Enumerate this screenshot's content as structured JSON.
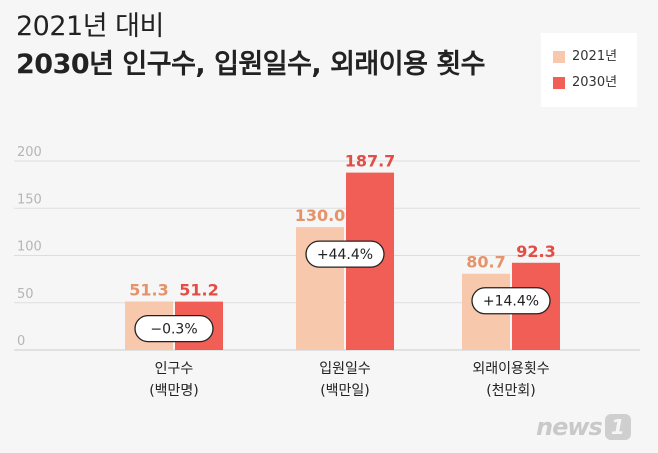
{
  "title": {
    "line1": "2021년 대비",
    "line2": "2030년 인구수, 입원일수, 외래이용 횟수"
  },
  "chart_data": {
    "type": "bar",
    "categories": [
      "인구수",
      "입원일수",
      "외래이용횟수"
    ],
    "category_units": [
      "(백만명)",
      "(백만일)",
      "(천만회)"
    ],
    "series": [
      {
        "name": "2021년",
        "values": [
          51.3,
          130.0,
          80.7
        ],
        "labels": [
          "51.3",
          "130.0",
          "80.7"
        ],
        "color": "#f8c8ad"
      },
      {
        "name": "2030년",
        "values": [
          51.2,
          187.7,
          92.3
        ],
        "labels": [
          "51.2",
          "187.7",
          "92.3"
        ],
        "color": "#f15e55"
      }
    ],
    "change_labels": [
      "−0.3%",
      "+44.4%",
      "+14.4%"
    ],
    "ylim": [
      0,
      200
    ],
    "yticks": [
      "0",
      "50",
      "100",
      "150",
      "200"
    ],
    "grid": true,
    "legend_position": "top-right"
  },
  "colors": {
    "label_2021": "#e5936a",
    "label_2030": "#e24d45",
    "gridline": "#dddddd",
    "tick": "#b5b5b5"
  },
  "logo": {
    "text": "news",
    "badge": "1"
  }
}
